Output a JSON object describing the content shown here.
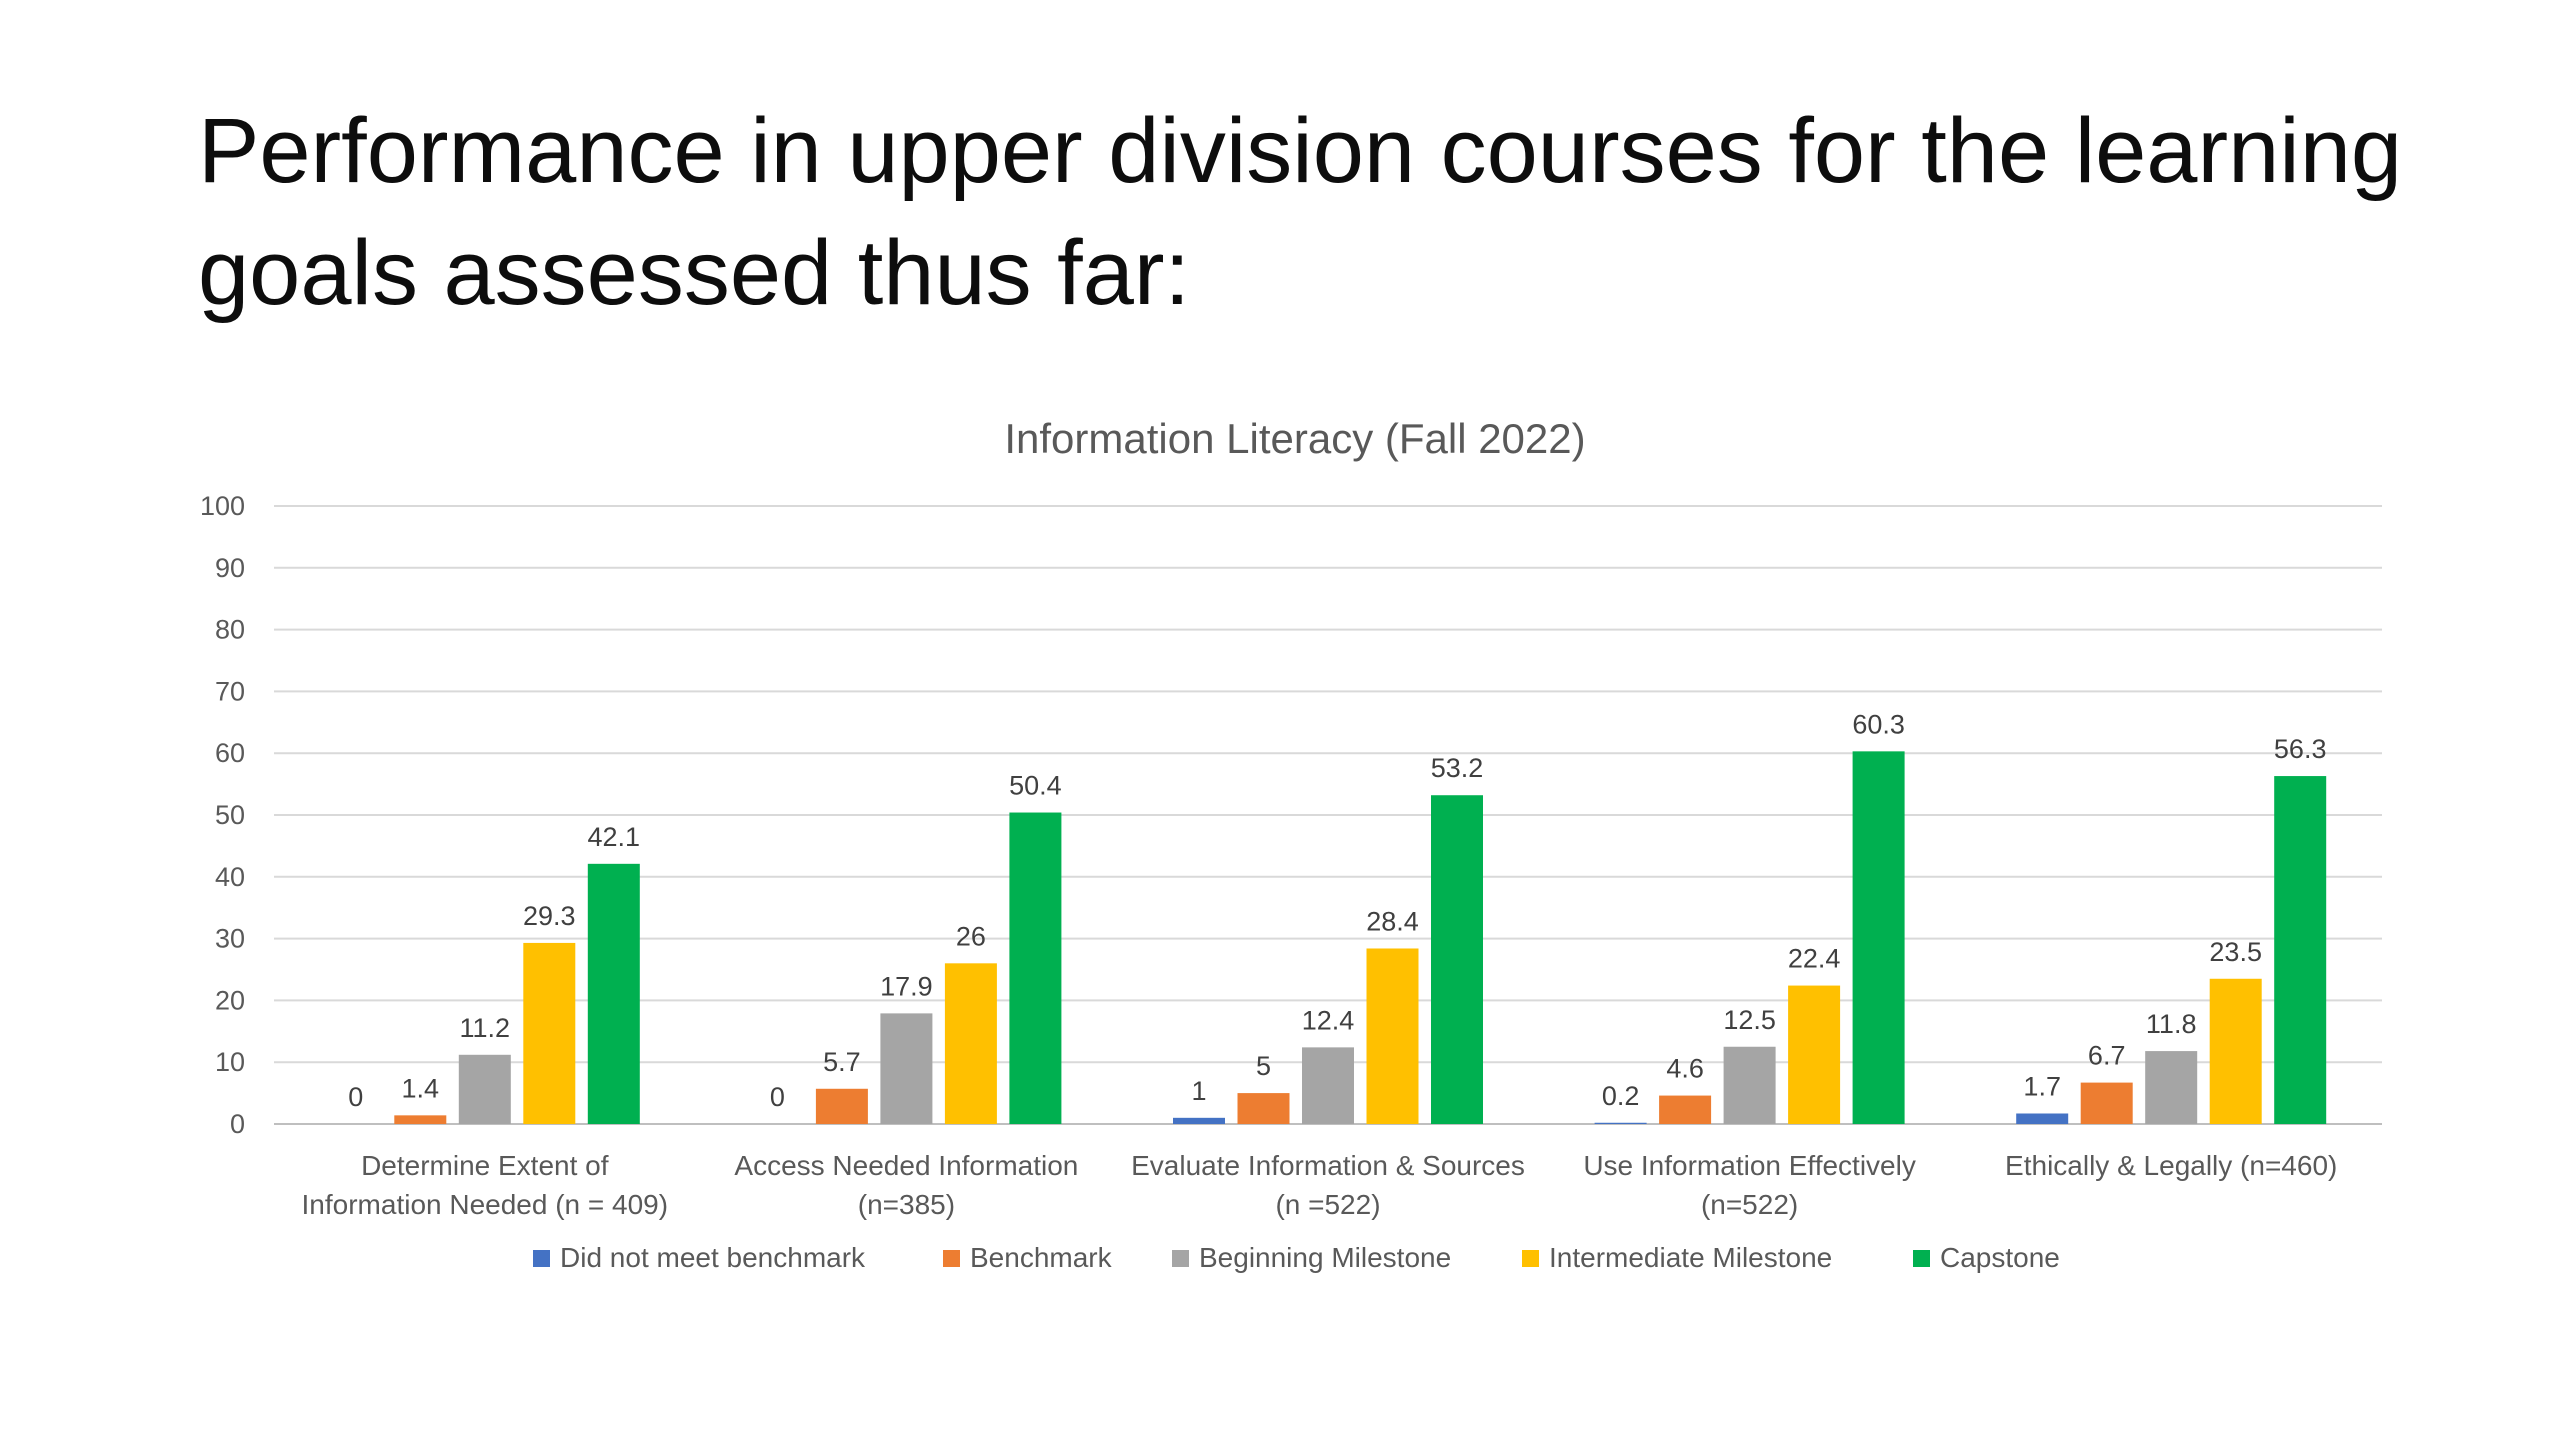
{
  "slide": {
    "title": "Performance in upper division courses for the learning goals assessed thus far:"
  },
  "chart_data": {
    "type": "bar",
    "title": "Information Literacy (Fall 2022)",
    "xlabel": "",
    "ylabel": "",
    "ylim": [
      0,
      100
    ],
    "yticks": [
      0,
      10,
      20,
      30,
      40,
      50,
      60,
      70,
      80,
      90,
      100
    ],
    "grid": true,
    "legend_position": "bottom",
    "categories": [
      [
        "Determine Extent of",
        "Information Needed (n = 409)"
      ],
      [
        "Access Needed Information",
        "(n=385)"
      ],
      [
        "Evaluate Information & Sources",
        "(n =522)"
      ],
      [
        "Use Information Effectively",
        "(n=522)"
      ],
      [
        "Ethically & Legally (n=460)"
      ]
    ],
    "series": [
      {
        "name": "Did not meet benchmark",
        "color": "#4472C4",
        "values": [
          0,
          0,
          1,
          0.2,
          1.7
        ]
      },
      {
        "name": "Benchmark",
        "color": "#ED7D31",
        "values": [
          1.4,
          5.7,
          5,
          4.6,
          6.7
        ]
      },
      {
        "name": "Beginning Milestone",
        "color": "#A5A5A5",
        "values": [
          11.2,
          17.9,
          12.4,
          12.5,
          11.8
        ]
      },
      {
        "name": "Intermediate Milestone",
        "color": "#FFC000",
        "values": [
          29.3,
          26,
          28.4,
          22.4,
          23.5
        ]
      },
      {
        "name": "Capstone",
        "color": "#00B050",
        "values": [
          42.1,
          50.4,
          53.2,
          60.3,
          56.3
        ]
      }
    ]
  }
}
